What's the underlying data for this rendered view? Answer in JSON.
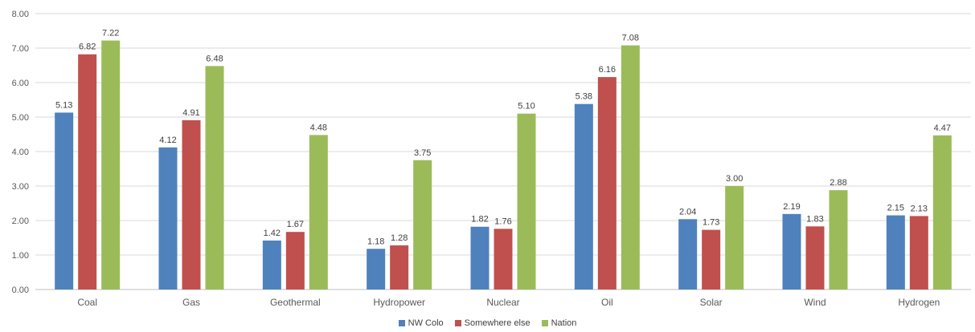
{
  "chart_data": {
    "type": "bar",
    "categories": [
      "Coal",
      "Gas",
      "Geothermal",
      "Hydropower",
      "Nuclear",
      "Oil",
      "Solar",
      "Wind",
      "Hydrogen"
    ],
    "series": [
      {
        "name": "NW Colo",
        "color": "#4F81BD",
        "values": [
          5.13,
          4.12,
          1.42,
          1.18,
          1.82,
          5.38,
          2.04,
          2.19,
          2.15
        ]
      },
      {
        "name": "Somewhere else",
        "color": "#C0504D",
        "values": [
          6.82,
          4.91,
          1.67,
          1.28,
          1.76,
          6.16,
          1.73,
          1.83,
          2.13
        ]
      },
      {
        "name": "Nation",
        "color": "#9BBB59",
        "values": [
          7.22,
          6.48,
          4.48,
          3.75,
          5.1,
          7.08,
          3.0,
          2.88,
          4.47
        ]
      }
    ],
    "ylim": [
      0,
      8
    ],
    "yticks": [
      "0.00",
      "1.00",
      "2.00",
      "3.00",
      "4.00",
      "5.00",
      "6.00",
      "7.00",
      "8.00"
    ],
    "grid": true,
    "legend_position": "bottom",
    "xlabel": "",
    "ylabel": "",
    "title": ""
  }
}
